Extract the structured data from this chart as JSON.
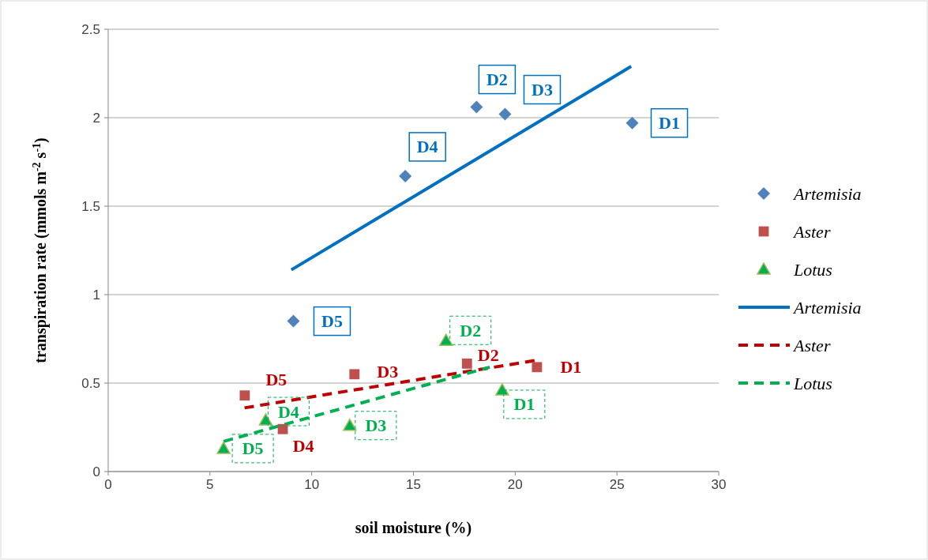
{
  "chart_data": {
    "type": "scatter",
    "xlabel": "soil moisture (%)",
    "ylabel": "transpiration rate (mmols m$^{-2}$ s$^{-1}$)",
    "xlim": [
      0,
      30
    ],
    "xticks": [
      0,
      5,
      10,
      15,
      20,
      25,
      30
    ],
    "ylim": [
      0,
      2.5
    ],
    "yticks": [
      0,
      0.5,
      1,
      1.5,
      2,
      2.5
    ],
    "grid": "y",
    "legend": "right",
    "series": [
      {
        "name": "Artemisia",
        "marker": "diamond",
        "color": "#4f81bd",
        "x": [
          25.75,
          18.1,
          19.5,
          14.6,
          9.1
        ],
        "values": [
          1.97,
          2.06,
          2.02,
          1.67,
          0.85
        ],
        "value_labels": [
          "D1",
          "D2",
          "D3",
          "D4",
          "D5"
        ]
      },
      {
        "name": "Aster",
        "marker": "square",
        "color": "#c0504d",
        "x": [
          21.07,
          17.63,
          12.1,
          8.58,
          6.71
        ],
        "values": [
          0.59,
          0.61,
          0.55,
          0.24,
          0.43
        ],
        "value_labels": [
          "D1",
          "D2",
          "D3",
          "D4",
          "D5"
        ]
      },
      {
        "name": "Lotus",
        "marker": "triangle",
        "color": "#00b050",
        "x": [
          19.36,
          16.6,
          11.87,
          7.74,
          5.67
        ],
        "values": [
          0.46,
          0.74,
          0.26,
          0.29,
          0.13
        ],
        "value_labels": [
          "D1",
          "D2",
          "D3",
          "D4",
          "D5"
        ]
      },
      {
        "name": "Artemisia",
        "type": "line",
        "line_style": "solid",
        "color": "#0070c0",
        "x": [
          9.0,
          25.7
        ],
        "values": [
          1.14,
          2.29
        ]
      },
      {
        "name": "Aster",
        "type": "line",
        "line_style": "dashed",
        "color": "#c00000",
        "x": [
          6.7,
          21.1
        ],
        "values": [
          0.36,
          0.63
        ]
      },
      {
        "name": "Lotus",
        "type": "line",
        "line_style": "dashed",
        "color": "#00b050",
        "x": [
          5.67,
          18.75
        ],
        "values": [
          0.17,
          0.59
        ]
      }
    ]
  }
}
